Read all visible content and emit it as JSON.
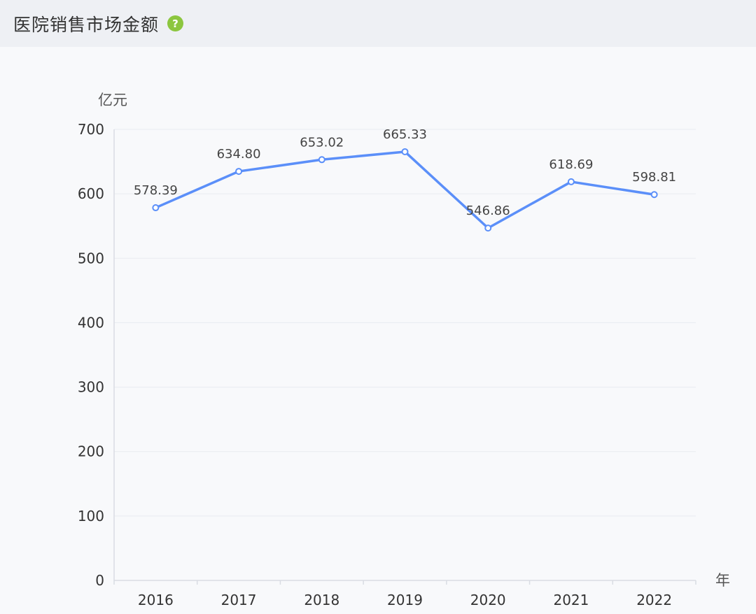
{
  "header": {
    "title": "医院销售市场金额",
    "help_icon": "question-circle-icon",
    "help_icon_glyph": "?",
    "help_icon_color": "#8cc63f"
  },
  "chart_data": {
    "type": "line",
    "categories": [
      "2016",
      "2017",
      "2018",
      "2019",
      "2020",
      "2021",
      "2022"
    ],
    "series": [
      {
        "values": [
          578.39,
          634.8,
          653.02,
          665.33,
          546.86,
          618.69,
          598.81
        ]
      }
    ],
    "data_labels": [
      "578.39",
      "634.80",
      "653.02",
      "665.33",
      "546.86",
      "618.69",
      "598.81"
    ],
    "ylabel": "亿元",
    "xlabel": "年",
    "ylim": [
      0,
      700
    ],
    "yticks": [
      0,
      100,
      200,
      300,
      400,
      500,
      600,
      700
    ],
    "grid": true,
    "line_color": "#5b8ff9"
  }
}
